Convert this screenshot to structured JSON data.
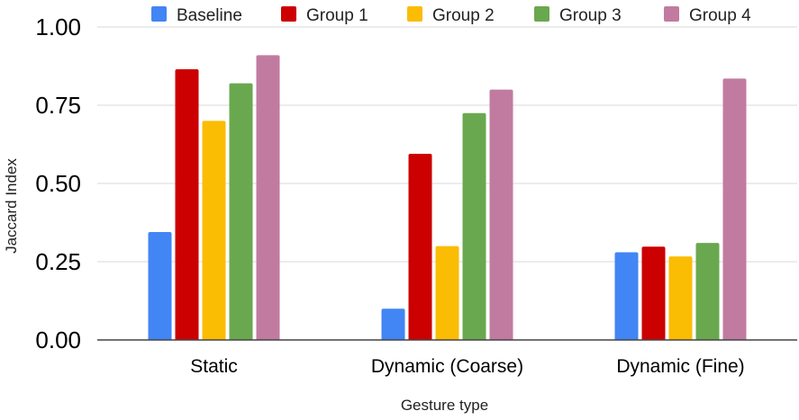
{
  "chart_data": {
    "type": "bar",
    "title": "",
    "xlabel": "Gesture type",
    "ylabel": "Jaccard Index",
    "ylim": [
      0,
      1
    ],
    "yticks": [
      "0.00",
      "0.25",
      "0.50",
      "0.75",
      "1.00"
    ],
    "yticks_values": [
      0,
      0.25,
      0.5,
      0.75,
      1.0
    ],
    "grid": true,
    "legend_position": "top",
    "categories": [
      "Static",
      "Dynamic (Coarse)",
      "Dynamic (Fine)"
    ],
    "series": [
      {
        "name": "Baseline",
        "color": "#4285F4",
        "values": [
          0.345,
          0.1,
          0.28
        ]
      },
      {
        "name": "Group 1",
        "color": "#CC0000",
        "values": [
          0.865,
          0.595,
          0.298
        ]
      },
      {
        "name": "Group 2",
        "color": "#FBBC04",
        "values": [
          0.7,
          0.3,
          0.267
        ]
      },
      {
        "name": "Group 3",
        "color": "#6AA84F",
        "values": [
          0.82,
          0.725,
          0.31
        ]
      },
      {
        "name": "Group 4",
        "color": "#C27BA0",
        "values": [
          0.91,
          0.8,
          0.835
        ]
      }
    ]
  },
  "colors": {
    "grid": "#d9d9d9",
    "axis": "#444444"
  }
}
